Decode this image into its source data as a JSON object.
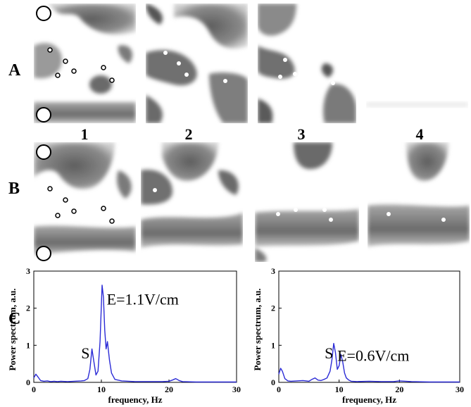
{
  "row_labels": {
    "a": "A",
    "b": "B",
    "c": "C"
  },
  "column_labels": [
    "1",
    "2",
    "3",
    "4"
  ],
  "chart_data": [
    {
      "type": "line",
      "title": "",
      "xlabel": "frequency, Hz",
      "ylabel": "Power spectrum, a.u.",
      "xlim": [
        0,
        30
      ],
      "ylim": [
        0,
        3
      ],
      "xticks": [
        0,
        10,
        20,
        30
      ],
      "yticks": [
        0,
        1,
        2,
        3
      ],
      "annotations": [
        {
          "text": "E=1.1V/cm",
          "x": 10.8,
          "y": 2.1
        },
        {
          "text": "S",
          "x": 7.0,
          "y": 0.65
        }
      ],
      "series": [
        {
          "color": "#2b2bd6",
          "x": [
            0,
            0.3,
            0.6,
            1.0,
            1.5,
            2.0,
            2.5,
            3.0,
            3.5,
            4.0,
            5.0,
            6.0,
            7.0,
            7.5,
            8.0,
            8.3,
            8.6,
            8.9,
            9.2,
            9.5,
            9.8,
            10.1,
            10.3,
            10.5,
            10.7,
            10.9,
            11.2,
            11.5,
            12.0,
            13.0,
            15.0,
            17.0,
            19.0,
            20.0,
            20.5,
            21.0,
            21.5,
            22.0,
            24.0,
            27.0,
            30.0
          ],
          "y": [
            0.12,
            0.22,
            0.15,
            0.05,
            0.03,
            0.04,
            0.02,
            0.03,
            0.02,
            0.03,
            0.02,
            0.03,
            0.04,
            0.05,
            0.1,
            0.35,
            0.9,
            0.55,
            0.2,
            0.3,
            1.1,
            2.62,
            2.3,
            1.4,
            0.9,
            1.1,
            0.6,
            0.25,
            0.08,
            0.04,
            0.02,
            0.02,
            0.02,
            0.03,
            0.06,
            0.1,
            0.05,
            0.02,
            0.01,
            0.01,
            0.01
          ]
        }
      ]
    },
    {
      "type": "line",
      "title": "",
      "xlabel": "frequency, Hz",
      "ylabel": "Power spectrum, a.u.",
      "xlim": [
        0,
        30
      ],
      "ylim": [
        0,
        3
      ],
      "xticks": [
        0,
        10,
        20,
        30
      ],
      "yticks": [
        0,
        1,
        2,
        3
      ],
      "annotations": [
        {
          "text": "S",
          "x": 7.6,
          "y": 0.65
        },
        {
          "text": "E=0.6V/cm",
          "x": 9.7,
          "y": 0.58
        }
      ],
      "series": [
        {
          "color": "#2b2bd6",
          "x": [
            0,
            0.3,
            0.6,
            1.0,
            1.5,
            2.0,
            3.0,
            4.0,
            5.0,
            5.5,
            6.0,
            6.5,
            7.0,
            7.5,
            8.0,
            8.5,
            8.8,
            9.1,
            9.4,
            9.7,
            10.0,
            10.3,
            10.6,
            10.9,
            11.2,
            11.6,
            12.0,
            13.0,
            15.0,
            17.0,
            19.0,
            20.0,
            22.0,
            25.0,
            30.0
          ],
          "y": [
            0.22,
            0.38,
            0.3,
            0.1,
            0.04,
            0.03,
            0.04,
            0.05,
            0.03,
            0.08,
            0.12,
            0.06,
            0.05,
            0.08,
            0.12,
            0.3,
            0.6,
            1.05,
            0.8,
            0.35,
            0.45,
            0.75,
            0.55,
            0.25,
            0.12,
            0.06,
            0.03,
            0.02,
            0.03,
            0.02,
            0.02,
            0.04,
            0.02,
            0.01,
            0.01
          ]
        }
      ]
    }
  ]
}
